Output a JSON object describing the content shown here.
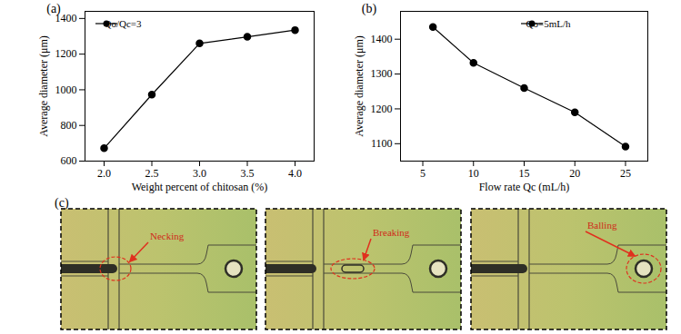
{
  "chart_data": [
    {
      "type": "line",
      "title": "(a)",
      "x_label": "Weight percent of chitosan (%)",
      "y_label": "Average diameter (μm)",
      "x": [
        2.0,
        2.5,
        3.0,
        3.5,
        4.0
      ],
      "series": [
        {
          "name": "Qo/Qc=3",
          "color": "#000000",
          "marker": "circle",
          "line_style": "solid",
          "values": [
            672,
            973,
            1260,
            1297,
            1335
          ]
        }
      ],
      "xlim": [
        1.8,
        4.2
      ],
      "xticks": [
        {
          "value": 2.0,
          "label": "2.0"
        },
        {
          "value": 2.5,
          "label": "2.5"
        },
        {
          "value": 3.0,
          "label": "3.0"
        },
        {
          "value": 3.5,
          "label": "3.5"
        },
        {
          "value": 4.0,
          "label": "4.0"
        }
      ],
      "ylim": [
        600,
        1440
      ],
      "yticks": [
        600,
        800,
        1000,
        1200,
        1400
      ],
      "legend": "top-left",
      "grid": false
    },
    {
      "type": "line",
      "title": "(b)",
      "x_label": "Flow rate Qc (mL/h)",
      "y_label": "Average diameter (μm)",
      "x": [
        6,
        10,
        15,
        20,
        25
      ],
      "series": [
        {
          "name": "Qo=5mL/h",
          "color": "#000000",
          "marker": "circle",
          "line_style": "solid",
          "values": [
            1435,
            1332,
            1260,
            1190,
            1092
          ]
        }
      ],
      "xlim": [
        2.8,
        27.2
      ],
      "xticks": [
        5,
        10,
        15,
        20,
        25
      ],
      "ylim": [
        1050,
        1480
      ],
      "yticks": [
        1100,
        1200,
        1300,
        1400
      ],
      "legend": "top-right",
      "grid": false
    }
  ],
  "panel_c": {
    "label": "(c)",
    "frames": [
      {
        "annotation": "Necking"
      },
      {
        "annotation": "Breaking"
      },
      {
        "annotation": "Balling"
      }
    ]
  }
}
